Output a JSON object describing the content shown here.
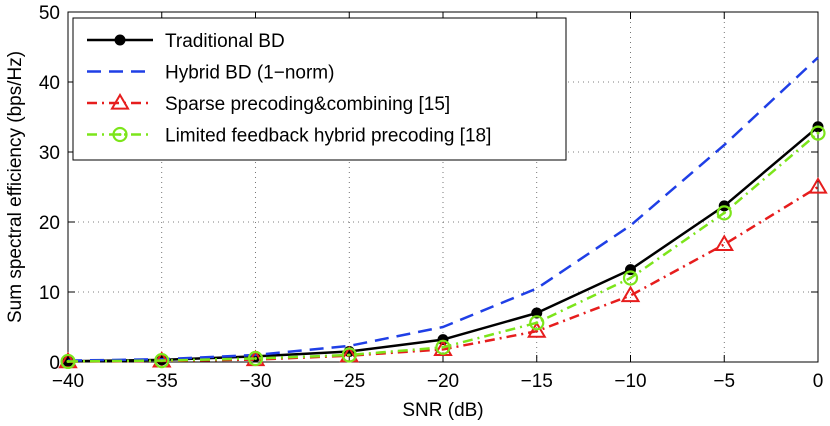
{
  "chart_data": {
    "type": "line",
    "title": "",
    "xlabel": "SNR (dB)",
    "ylabel": "Sum spectral efficiency (bps/Hz)",
    "xlim": [
      -40,
      0
    ],
    "ylim": [
      0,
      50
    ],
    "xticks": [
      -40,
      -35,
      -30,
      -25,
      -20,
      -15,
      -10,
      -5,
      0
    ],
    "xtick_labels": [
      "−40",
      "−35",
      "−30",
      "−25",
      "−20",
      "−15",
      "−10",
      "−5",
      "0"
    ],
    "yticks": [
      0,
      10,
      20,
      30,
      40,
      50
    ],
    "ytick_labels": [
      "0",
      "10",
      "20",
      "30",
      "40",
      "50"
    ],
    "grid": true,
    "legend_position": "top-left",
    "x": [
      -40,
      -35,
      -30,
      -25,
      -20,
      -15,
      -10,
      -5,
      0
    ],
    "series": [
      {
        "name": "Traditional BD",
        "values": [
          0.1,
          0.3,
          0.8,
          1.5,
          3.2,
          7.0,
          13.2,
          22.3,
          33.6
        ],
        "color": "#000000",
        "line_style": "solid",
        "marker": "dot"
      },
      {
        "name": "Hybrid BD (1−norm)",
        "values": [
          0.2,
          0.4,
          1.0,
          2.3,
          5.0,
          10.5,
          19.5,
          31.0,
          43.5
        ],
        "color": "#1f3fe6",
        "line_style": "dashed",
        "marker": "none"
      },
      {
        "name": "Sparse precoding&combining [15]",
        "values": [
          0.05,
          0.15,
          0.35,
          0.9,
          1.8,
          4.4,
          9.5,
          16.8,
          25.0
        ],
        "color": "#e61d1d",
        "line_style": "dashdot",
        "marker": "triangle"
      },
      {
        "name": "Limited feedback hybrid precoding [18]",
        "values": [
          0.08,
          0.2,
          0.5,
          1.0,
          2.1,
          5.6,
          12.0,
          21.3,
          32.7
        ],
        "color": "#7ce51a",
        "line_style": "dashdot",
        "marker": "circle"
      }
    ]
  }
}
